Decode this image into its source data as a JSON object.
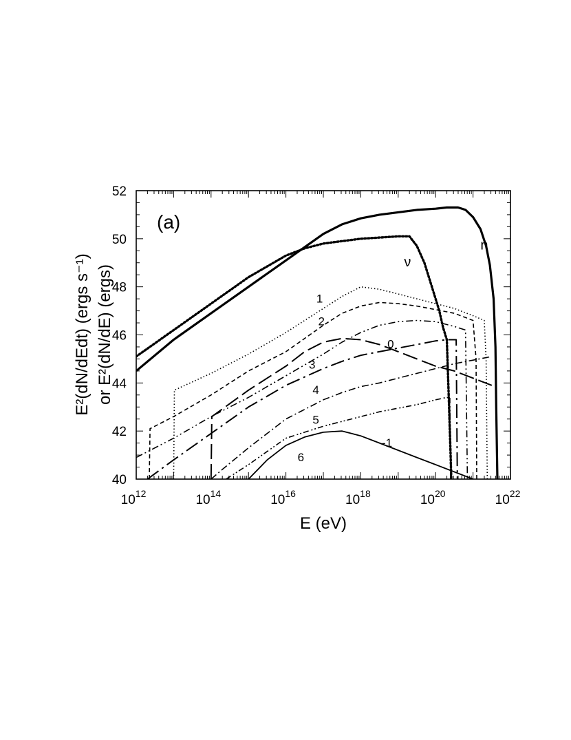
{
  "chart_data": {
    "type": "line",
    "panel_label": "(a)",
    "xlabel": "E  (eV)",
    "ylabel_line1": "E²(dN/dEdt)  (ergs  s⁻¹)",
    "ylabel_line2": "or E²(dN/dE)  (ergs)",
    "xscale": "log",
    "xlim_log10": [
      12,
      22
    ],
    "ylim": [
      40,
      52
    ],
    "x_tick_labels": [
      {
        "base": "10",
        "exp": "12",
        "log10": 12
      },
      {
        "base": "10",
        "exp": "14",
        "log10": 14
      },
      {
        "base": "10",
        "exp": "16",
        "log10": 16
      },
      {
        "base": "10",
        "exp": "18",
        "log10": 18
      },
      {
        "base": "10",
        "exp": "20",
        "log10": 20
      },
      {
        "base": "10",
        "exp": "22",
        "log10": 22
      }
    ],
    "y_tick_labels": [
      "40",
      "42",
      "44",
      "46",
      "48",
      "50",
      "52"
    ],
    "grid": false,
    "series": [
      {
        "name": "n",
        "style": "solid",
        "width": 3.2,
        "log10E": [
          12.0,
          13.0,
          14.0,
          15.0,
          16.0,
          17.0,
          17.5,
          18.0,
          18.5,
          19.0,
          19.5,
          20.0,
          20.3,
          20.6,
          20.8,
          21.0,
          21.2,
          21.35,
          21.45,
          21.55,
          21.6,
          21.62,
          21.65
        ],
        "value": [
          44.5,
          45.8,
          46.9,
          48.0,
          49.1,
          50.2,
          50.6,
          50.85,
          51.0,
          51.1,
          51.2,
          51.25,
          51.3,
          51.3,
          51.2,
          50.9,
          50.4,
          49.7,
          48.9,
          47.5,
          45.5,
          43.0,
          40.0
        ]
      },
      {
        "name": "ν",
        "style": "dotted",
        "width": 3.4,
        "log10E": [
          12.0,
          13.0,
          14.0,
          15.0,
          16.0,
          16.5,
          17.0,
          17.5,
          18.0,
          18.5,
          19.0,
          19.3,
          19.5,
          19.7,
          19.9,
          20.1,
          20.2,
          20.3,
          20.35,
          20.4,
          20.42
        ],
        "value": [
          45.1,
          46.2,
          47.3,
          48.4,
          49.3,
          49.6,
          49.8,
          49.9,
          50.0,
          50.05,
          50.1,
          50.1,
          49.7,
          49.0,
          48.0,
          47.0,
          46.3,
          45.8,
          43.5,
          41.0,
          40.0
        ]
      },
      {
        "label": "1",
        "style": "dotted-thin",
        "width": 1.6,
        "log10E": [
          13.0,
          13.02,
          14.0,
          15.0,
          16.0,
          17.0,
          17.5,
          18.0,
          18.5,
          19.0,
          19.5,
          20.0,
          20.5,
          21.0,
          21.3,
          21.35,
          21.38
        ],
        "value": [
          40.0,
          43.7,
          44.4,
          45.2,
          46.1,
          47.1,
          47.6,
          48.0,
          47.9,
          47.7,
          47.5,
          47.3,
          47.1,
          46.8,
          46.6,
          45.0,
          40.0
        ]
      },
      {
        "label": "2",
        "style": "dashed",
        "width": 1.6,
        "log10E": [
          12.35,
          12.37,
          13.0,
          14.0,
          15.0,
          16.0,
          17.0,
          17.5,
          18.0,
          18.5,
          19.0,
          19.5,
          20.0,
          20.5,
          21.0,
          21.08,
          21.1
        ],
        "value": [
          40.0,
          42.1,
          42.6,
          43.5,
          44.5,
          45.3,
          46.4,
          46.9,
          47.2,
          47.35,
          47.3,
          47.2,
          47.05,
          46.9,
          46.6,
          45.0,
          40.0
        ]
      },
      {
        "label": "3",
        "style": "dashdotdot",
        "width": 1.6,
        "log10E": [
          12.0,
          13.0,
          14.0,
          15.0,
          16.0,
          17.0,
          17.5,
          18.0,
          18.5,
          19.0,
          19.5,
          20.0,
          20.5,
          20.8,
          20.85
        ],
        "value": [
          40.9,
          41.7,
          42.6,
          43.4,
          44.3,
          45.2,
          45.7,
          46.1,
          46.4,
          46.55,
          46.6,
          46.55,
          46.35,
          46.2,
          40.0
        ]
      },
      {
        "label": "0",
        "style": "longdash",
        "width": 2.0,
        "log10E": [
          14.0,
          14.02,
          15.0,
          16.0,
          16.5,
          17.0,
          17.5,
          18.0,
          18.5,
          19.0,
          19.5,
          20.0,
          20.5,
          21.0,
          21.5
        ],
        "value": [
          40.0,
          42.6,
          43.7,
          44.7,
          45.3,
          45.7,
          45.85,
          45.8,
          45.6,
          45.3,
          45.0,
          44.7,
          44.5,
          44.2,
          43.9
        ]
      },
      {
        "label": "4",
        "style": "longdashdot",
        "width": 2.0,
        "log10E": [
          12.3,
          13.0,
          14.0,
          15.0,
          16.0,
          17.0,
          17.5,
          18.0,
          18.5,
          19.0,
          19.5,
          20.0,
          20.3,
          20.55,
          20.58
        ],
        "value": [
          40.0,
          40.8,
          41.9,
          43.0,
          43.9,
          44.6,
          44.9,
          45.15,
          45.3,
          45.45,
          45.6,
          45.75,
          45.8,
          45.8,
          40.0
        ]
      },
      {
        "label": "5",
        "style": "dashdot",
        "width": 1.6,
        "log10E": [
          14.0,
          14.3,
          15.0,
          16.0,
          17.0,
          17.5,
          18.0,
          18.5,
          19.0,
          19.5,
          20.0,
          20.5,
          21.0,
          21.5
        ],
        "value": [
          40.0,
          40.4,
          41.3,
          42.5,
          43.3,
          43.6,
          43.85,
          44.0,
          44.2,
          44.4,
          44.6,
          44.8,
          44.95,
          45.1
        ]
      },
      {
        "label": "6",
        "style": "dashdotdot2",
        "width": 1.6,
        "log10E": [
          14.4,
          15.0,
          16.0,
          17.0,
          17.5,
          18.0,
          18.5,
          19.0,
          19.5,
          20.0,
          20.3,
          20.38,
          20.4
        ],
        "value": [
          40.0,
          40.6,
          41.7,
          42.2,
          42.4,
          42.6,
          42.8,
          42.95,
          43.1,
          43.3,
          43.4,
          43.4,
          40.0
        ]
      },
      {
        "label": "-1",
        "style": "solid-thin",
        "width": 1.8,
        "log10E": [
          15.0,
          15.5,
          16.0,
          16.5,
          17.0,
          17.5,
          18.0,
          18.5,
          19.0,
          19.5,
          20.0,
          20.5,
          21.0
        ],
        "value": [
          40.0,
          40.8,
          41.4,
          41.75,
          41.95,
          42.0,
          41.8,
          41.5,
          41.2,
          40.9,
          40.6,
          40.3,
          40.0
        ]
      }
    ],
    "curve_labels": [
      {
        "text": "n",
        "at_log10E": 21.3,
        "at_value": 49.55
      },
      {
        "text": "ν",
        "at_log10E": 19.25,
        "at_value": 48.85
      },
      {
        "text": "1",
        "at_log10E": 16.9,
        "at_value": 47.35
      },
      {
        "text": "2",
        "at_log10E": 16.95,
        "at_value": 46.4
      },
      {
        "text": "0",
        "at_log10E": 18.8,
        "at_value": 45.45
      },
      {
        "text": "3",
        "at_log10E": 16.7,
        "at_value": 44.6
      },
      {
        "text": "4",
        "at_log10E": 16.8,
        "at_value": 43.55
      },
      {
        "text": "5",
        "at_log10E": 16.8,
        "at_value": 42.3
      },
      {
        "text": "6",
        "at_log10E": 16.4,
        "at_value": 40.75
      },
      {
        "text": "-1",
        "at_log10E": 18.7,
        "at_value": 41.35
      }
    ]
  }
}
